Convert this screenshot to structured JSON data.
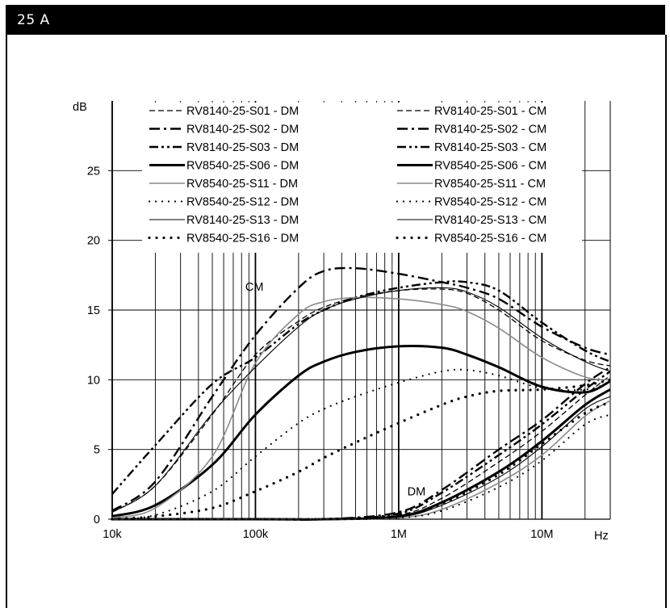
{
  "header": {
    "title": "25 A"
  },
  "chart_data": {
    "type": "line",
    "xscale": "log",
    "xlim": [
      10000,
      30000000
    ],
    "ylim": [
      0,
      30
    ],
    "xlabel": "Hz",
    "ylabel": "dB",
    "xticks": [
      {
        "value": 10000,
        "label": "10k"
      },
      {
        "value": 100000,
        "label": "100k"
      },
      {
        "value": 1000000,
        "label": "1M"
      },
      {
        "value": 10000000,
        "label": "10M"
      }
    ],
    "yticks": [
      {
        "value": 0,
        "label": "0"
      },
      {
        "value": 5,
        "label": "5"
      },
      {
        "value": 10,
        "label": "10"
      },
      {
        "value": 15,
        "label": "15"
      },
      {
        "value": 20,
        "label": "20"
      },
      {
        "value": 25,
        "label": "25"
      }
    ],
    "annotations": [
      {
        "text": "CM",
        "x": 85000,
        "y": 16.4
      },
      {
        "text": "DM",
        "x": 1150000,
        "y": 1.7
      }
    ],
    "legend": {
      "placement": "top",
      "columns": 2
    },
    "series": [
      {
        "name": "RV8140-25-S01 - DM",
        "style": "dash",
        "x": [
          10000,
          100000,
          300000,
          1000000,
          2000000,
          5000000,
          10000000,
          20000000,
          30000000
        ],
        "y": [
          0,
          0,
          0,
          0.3,
          1.5,
          4.1,
          6.3,
          8.9,
          10.3
        ]
      },
      {
        "name": "RV8140-25-S02 - DM",
        "style": "dashdot",
        "x": [
          10000,
          100000,
          300000,
          1000000,
          2000000,
          5000000,
          10000000,
          20000000,
          30000000
        ],
        "y": [
          0,
          0,
          0,
          0.5,
          2.1,
          5.0,
          7.1,
          9.7,
          10.9
        ]
      },
      {
        "name": "RV8140-25-S03 - DM",
        "style": "dashdotdot",
        "x": [
          10000,
          100000,
          300000,
          1000000,
          2000000,
          5000000,
          10000000,
          20000000,
          30000000
        ],
        "y": [
          0,
          0,
          0,
          0.4,
          1.9,
          4.6,
          6.8,
          9.3,
          10.6
        ]
      },
      {
        "name": "RV8540-25-S06 - DM",
        "style": "thick",
        "x": [
          10000,
          100000,
          300000,
          1000000,
          2000000,
          5000000,
          10000000,
          20000000,
          30000000
        ],
        "y": [
          0,
          0,
          0,
          0.2,
          1.2,
          3.4,
          5.6,
          8.2,
          9.3
        ]
      },
      {
        "name": "RV8540-25-S11 - DM",
        "style": "gray",
        "x": [
          10000,
          100000,
          300000,
          1000000,
          2000000,
          5000000,
          10000000,
          20000000,
          30000000
        ],
        "y": [
          0,
          0,
          0,
          0.1,
          0.7,
          2.6,
          4.6,
          7.4,
          8.5
        ]
      },
      {
        "name": "RV8540-25-S12 - DM",
        "style": "dot",
        "x": [
          10000,
          100000,
          300000,
          1000000,
          2000000,
          5000000,
          10000000,
          20000000,
          30000000
        ],
        "y": [
          0,
          0,
          0,
          0.1,
          0.6,
          2.3,
          4.2,
          6.8,
          7.5
        ]
      },
      {
        "name": "RV8140-25-S13 - DM",
        "style": "thin",
        "x": [
          10000,
          100000,
          300000,
          1000000,
          2000000,
          5000000,
          10000000,
          20000000,
          30000000
        ],
        "y": [
          0,
          0,
          0,
          0.15,
          1.0,
          3.0,
          5.2,
          7.9,
          8.8
        ]
      },
      {
        "name": "RV8540-25-S16 - DM",
        "style": "bigdot",
        "x": [
          10000,
          100000,
          300000,
          1000000,
          2000000,
          5000000,
          10000000,
          20000000,
          30000000
        ],
        "y": [
          0,
          0,
          0,
          0.2,
          1.1,
          3.2,
          5.4,
          7.6,
          8.4
        ]
      },
      {
        "name": "RV8140-25-S01 - CM",
        "style": "dash",
        "x": [
          10000,
          20000,
          50000,
          100000,
          200000,
          300000,
          500000,
          1000000,
          2000000,
          3000000,
          5000000,
          10000000,
          20000000,
          30000000
        ],
        "y": [
          0.5,
          2.4,
          7.5,
          11.8,
          14.2,
          15.2,
          15.9,
          16.4,
          16.5,
          16.2,
          15.0,
          12.8,
          11.4,
          11.0
        ]
      },
      {
        "name": "RV8140-25-S02 - CM",
        "style": "dashdot",
        "x": [
          10000,
          20000,
          50000,
          100000,
          200000,
          300000,
          500000,
          1000000,
          2000000,
          3000000,
          5000000,
          10000000,
          20000000,
          30000000
        ],
        "y": [
          0.6,
          2.7,
          8.8,
          13.2,
          16.6,
          17.8,
          18.0,
          17.6,
          17.0,
          16.6,
          15.8,
          13.8,
          12.3,
          11.8
        ]
      },
      {
        "name": "RV8140-25-S03 - CM",
        "style": "dashdotdot",
        "x": [
          10000,
          20000,
          50000,
          100000,
          200000,
          300000,
          500000,
          1000000,
          2000000,
          3000000,
          5000000,
          10000000,
          20000000,
          30000000
        ],
        "y": [
          1.8,
          5.3,
          9.7,
          11.6,
          14.0,
          15.0,
          15.9,
          16.6,
          17.0,
          17.0,
          16.4,
          14.1,
          12.1,
          11.3
        ]
      },
      {
        "name": "RV8540-25-S06 - CM",
        "style": "thick",
        "x": [
          10000,
          20000,
          50000,
          100000,
          200000,
          300000,
          500000,
          1000000,
          2000000,
          3000000,
          5000000,
          10000000,
          20000000,
          30000000
        ],
        "y": [
          0.2,
          1.0,
          3.9,
          7.5,
          10.3,
          11.3,
          12.0,
          12.4,
          12.3,
          11.8,
          10.9,
          9.5,
          9.1,
          9.9
        ]
      },
      {
        "name": "RV8540-25-S11 - CM",
        "style": "gray",
        "x": [
          10000,
          20000,
          50000,
          100000,
          200000,
          300000,
          500000,
          1000000,
          2000000,
          3000000,
          5000000,
          10000000,
          20000000,
          30000000
        ],
        "y": [
          0.1,
          0.8,
          4.5,
          11.2,
          14.7,
          15.6,
          15.9,
          15.8,
          15.4,
          14.9,
          13.7,
          11.6,
          10.2,
          10.0
        ]
      },
      {
        "name": "RV8540-25-S12 - CM",
        "style": "dot",
        "x": [
          10000,
          20000,
          50000,
          100000,
          200000,
          300000,
          500000,
          1000000,
          2000000,
          3000000,
          5000000,
          10000000,
          20000000,
          30000000
        ],
        "y": [
          0.0,
          0.3,
          2.0,
          4.5,
          6.9,
          7.9,
          8.8,
          9.8,
          10.6,
          10.7,
          10.3,
          9.4,
          9.3,
          9.8
        ]
      },
      {
        "name": "RV8140-25-S13 - CM",
        "style": "thin",
        "x": [
          10000,
          20000,
          50000,
          100000,
          200000,
          300000,
          500000,
          1000000,
          2000000,
          3000000,
          5000000,
          10000000,
          20000000,
          30000000
        ],
        "y": [
          0.5,
          2.4,
          7.6,
          10.9,
          13.8,
          15.0,
          15.8,
          16.4,
          16.6,
          16.3,
          15.2,
          13.0,
          11.3,
          10.6
        ]
      },
      {
        "name": "RV8540-25-S16 - CM",
        "style": "bigdot",
        "x": [
          10000,
          20000,
          50000,
          100000,
          200000,
          300000,
          500000,
          1000000,
          2000000,
          3000000,
          5000000,
          10000000,
          20000000,
          30000000
        ],
        "y": [
          0.0,
          0.2,
          0.8,
          2.0,
          3.4,
          4.4,
          5.5,
          6.9,
          8.2,
          8.8,
          9.2,
          9.3,
          9.6,
          10.0
        ]
      }
    ]
  }
}
